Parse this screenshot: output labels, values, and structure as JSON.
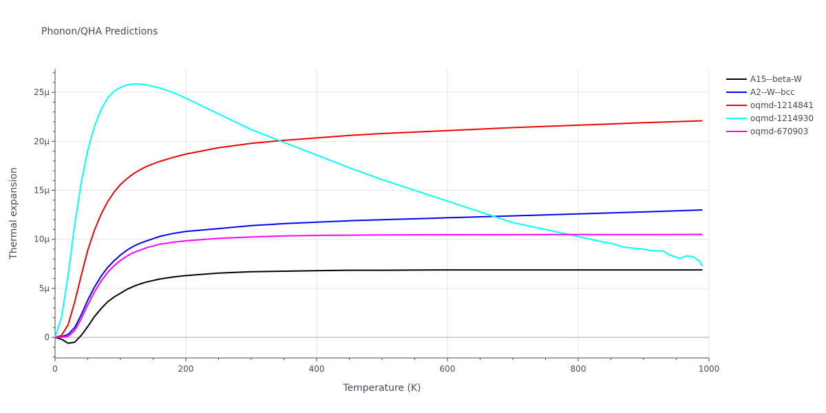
{
  "chart_data": {
    "type": "line",
    "title": "Phonon/QHA Predictions",
    "xlabel": "Temperature (K)",
    "ylabel": "Thermal expansion",
    "xlim": [
      0,
      1000
    ],
    "ylim": [
      -2.1,
      27.4
    ],
    "x_ticks": [
      0,
      200,
      400,
      600,
      800,
      1000
    ],
    "x_tick_labels": [
      "0",
      "200",
      "400",
      "600",
      "800",
      "1000"
    ],
    "y_ticks": [
      0,
      5,
      10,
      15,
      20,
      25
    ],
    "y_tick_labels": [
      "0",
      "5μ",
      "10μ",
      "15μ",
      "20μ",
      "25μ"
    ],
    "y_unit": "μ",
    "grid": true,
    "legend_position": "top-right",
    "series": [
      {
        "name": "A15--beta-W",
        "color": "#000000",
        "x": [
          0,
          10,
          20,
          30,
          40,
          50,
          60,
          70,
          80,
          90,
          100,
          110,
          120,
          130,
          140,
          160,
          180,
          200,
          250,
          300,
          350,
          400,
          450,
          500,
          600,
          700,
          800,
          900,
          990
        ],
        "y": [
          0,
          -0.2,
          -0.6,
          -0.5,
          0.2,
          1.1,
          2.1,
          2.9,
          3.6,
          4.1,
          4.5,
          4.9,
          5.2,
          5.45,
          5.65,
          5.95,
          6.15,
          6.3,
          6.55,
          6.7,
          6.75,
          6.8,
          6.85,
          6.85,
          6.88,
          6.88,
          6.88,
          6.88,
          6.88
        ]
      },
      {
        "name": "A2--W--bcc",
        "color": "#0000ee",
        "x": [
          0,
          10,
          20,
          30,
          40,
          50,
          60,
          70,
          80,
          90,
          100,
          110,
          120,
          130,
          140,
          160,
          180,
          200,
          250,
          300,
          350,
          400,
          450,
          500,
          600,
          700,
          800,
          900,
          990
        ],
        "y": [
          0,
          0.05,
          0.3,
          1.0,
          2.3,
          3.8,
          5.1,
          6.2,
          7.1,
          7.8,
          8.4,
          8.9,
          9.3,
          9.6,
          9.85,
          10.3,
          10.6,
          10.8,
          11.1,
          11.4,
          11.6,
          11.75,
          11.9,
          12.0,
          12.2,
          12.4,
          12.6,
          12.8,
          13.0
        ]
      },
      {
        "name": "oqmd-1214841",
        "color": "#ee0000",
        "x": [
          0,
          10,
          20,
          30,
          40,
          50,
          60,
          70,
          80,
          90,
          100,
          110,
          120,
          130,
          140,
          160,
          180,
          200,
          250,
          300,
          350,
          400,
          450,
          500,
          600,
          700,
          800,
          900,
          990
        ],
        "y": [
          0,
          0.2,
          1.3,
          3.6,
          6.3,
          8.9,
          10.9,
          12.5,
          13.8,
          14.8,
          15.6,
          16.2,
          16.7,
          17.1,
          17.45,
          17.95,
          18.35,
          18.7,
          19.35,
          19.8,
          20.1,
          20.35,
          20.6,
          20.8,
          21.1,
          21.4,
          21.65,
          21.9,
          22.1
        ]
      },
      {
        "name": "oqmd-1214930",
        "color": "#00ffff",
        "x": [
          0,
          10,
          20,
          30,
          40,
          50,
          60,
          70,
          80,
          90,
          100,
          110,
          120,
          130,
          140,
          160,
          180,
          200,
          250,
          300,
          350,
          400,
          450,
          500,
          600,
          700,
          800,
          840,
          850,
          870,
          900,
          910,
          930,
          940,
          955,
          965,
          975,
          985,
          990
        ],
        "y": [
          0,
          2.1,
          6.4,
          11.5,
          15.8,
          19.1,
          21.5,
          23.2,
          24.4,
          25.1,
          25.5,
          25.75,
          25.85,
          25.85,
          25.75,
          25.45,
          25.0,
          24.4,
          22.8,
          21.2,
          19.9,
          18.6,
          17.3,
          16.1,
          13.9,
          11.7,
          10.3,
          9.7,
          9.6,
          9.2,
          9.0,
          8.85,
          8.8,
          8.4,
          8.05,
          8.3,
          8.25,
          7.8,
          7.3
        ]
      },
      {
        "name": "oqmd-670903",
        "color": "#ff00ff",
        "x": [
          0,
          10,
          20,
          30,
          40,
          50,
          60,
          70,
          80,
          90,
          100,
          110,
          120,
          130,
          140,
          160,
          180,
          200,
          250,
          300,
          350,
          400,
          450,
          500,
          600,
          700,
          800,
          900,
          990
        ],
        "y": [
          0,
          0.02,
          0.1,
          0.7,
          1.9,
          3.3,
          4.6,
          5.7,
          6.6,
          7.3,
          7.85,
          8.3,
          8.65,
          8.9,
          9.15,
          9.5,
          9.7,
          9.85,
          10.1,
          10.25,
          10.35,
          10.4,
          10.43,
          10.45,
          10.47,
          10.48,
          10.49,
          10.49,
          10.5
        ]
      }
    ]
  }
}
